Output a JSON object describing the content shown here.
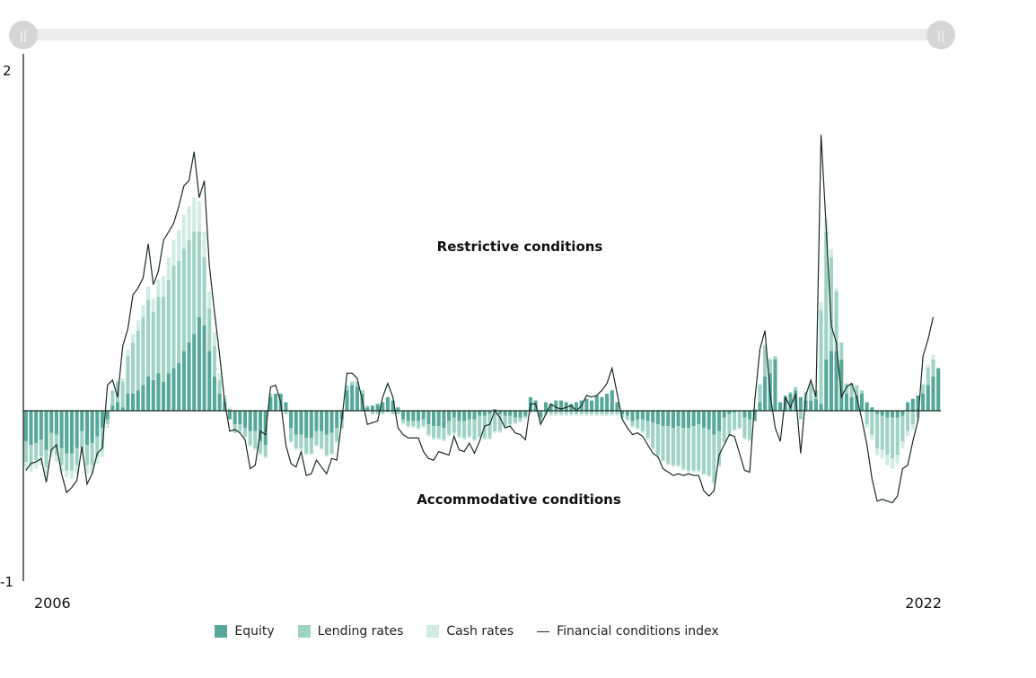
{
  "colors": {
    "equity": "#56a898",
    "lending": "#9fd3c5",
    "cash": "#d0ece4",
    "index": "#1a2a24",
    "slider_track": "#ececec",
    "slider_handle": "#d6d6d6"
  },
  "legend": [
    {
      "key": "equity",
      "label": "Equity"
    },
    {
      "key": "lending",
      "label": "Lending rates"
    },
    {
      "key": "cash",
      "label": "Cash rates"
    },
    {
      "key": "index",
      "label": "Financial conditions index"
    }
  ],
  "chart_data": {
    "type": "bar",
    "stacked": true,
    "title": "",
    "xlabel": "",
    "ylabel": "",
    "ylim": [
      -1,
      2
    ],
    "y_ticks": [
      "2",
      "-1"
    ],
    "x_tick_labels": [
      "2006",
      "2022"
    ],
    "annotations": [
      "Restrictive conditions",
      "Accommodative conditions"
    ],
    "series": [
      {
        "name": "Equity",
        "values": [
          -0.18,
          -0.2,
          -0.19,
          -0.17,
          -0.23,
          -0.13,
          -0.14,
          -0.22,
          -0.25,
          -0.25,
          -0.22,
          -0.12,
          -0.2,
          -0.19,
          -0.15,
          -0.1,
          -0.05,
          0.03,
          0.05,
          0.02,
          0.1,
          0.1,
          0.12,
          0.15,
          0.2,
          0.18,
          0.22,
          0.17,
          0.22,
          0.25,
          0.28,
          0.35,
          0.4,
          0.45,
          0.55,
          0.5,
          0.35,
          0.2,
          0.1,
          0.05,
          -0.05,
          -0.08,
          -0.08,
          -0.1,
          -0.12,
          -0.12,
          -0.18,
          -0.2,
          0.08,
          0.1,
          0.1,
          0.05,
          -0.1,
          -0.14,
          -0.14,
          -0.16,
          -0.16,
          -0.12,
          -0.12,
          -0.14,
          -0.13,
          -0.1,
          -0.05,
          0.12,
          0.15,
          0.14,
          0.1,
          0.02,
          0.03,
          0.04,
          0.05,
          0.08,
          0.06,
          0.02,
          -0.05,
          -0.06,
          -0.06,
          -0.06,
          -0.05,
          -0.08,
          -0.09,
          -0.09,
          -0.1,
          -0.06,
          -0.04,
          -0.06,
          -0.06,
          -0.05,
          -0.05,
          -0.03,
          -0.03,
          -0.02,
          0.01,
          -0.02,
          -0.03,
          -0.03,
          -0.04,
          -0.04,
          -0.03,
          0.08,
          0.06,
          -0.04,
          0.05,
          0.04,
          0.06,
          0.06,
          0.05,
          0.04,
          0.05,
          0.06,
          0.07,
          0.06,
          0.09,
          0.08,
          0.1,
          0.12,
          0.05,
          -0.02,
          -0.03,
          -0.06,
          -0.05,
          -0.05,
          -0.06,
          -0.07,
          -0.08,
          -0.09,
          -0.09,
          -0.1,
          -0.09,
          -0.1,
          -0.1,
          -0.09,
          -0.08,
          -0.1,
          -0.11,
          -0.14,
          -0.12,
          -0.04,
          -0.02,
          -0.01,
          0.0,
          -0.04,
          -0.05,
          -0.06,
          0.05,
          0.2,
          0.22,
          0.3,
          0.05,
          0.08,
          0.1,
          0.12,
          0.08,
          0.06,
          0.06,
          0.07,
          0.04,
          0.3,
          0.35,
          0.35,
          0.3,
          0.1,
          0.08,
          0.09,
          0.1,
          0.05,
          0.02,
          -0.02,
          -0.03,
          -0.04,
          -0.04,
          -0.04,
          -0.03,
          0.05,
          0.07,
          0.09,
          0.1,
          0.15,
          0.2,
          0.25
        ]
      },
      {
        "name": "Lending rates",
        "values": [
          -0.12,
          -0.12,
          -0.1,
          -0.1,
          -0.1,
          -0.11,
          -0.12,
          -0.1,
          -0.1,
          -0.1,
          -0.1,
          -0.1,
          -0.12,
          -0.13,
          -0.12,
          -0.12,
          -0.03,
          0.09,
          0.12,
          0.15,
          0.22,
          0.3,
          0.35,
          0.4,
          0.45,
          0.4,
          0.45,
          0.5,
          0.55,
          0.6,
          0.6,
          0.6,
          0.6,
          0.6,
          0.5,
          0.4,
          0.25,
          0.18,
          0.08,
          0.02,
          0.01,
          -0.05,
          -0.04,
          -0.05,
          -0.08,
          -0.1,
          -0.07,
          -0.07,
          0.02,
          0.0,
          0.0,
          -0.02,
          -0.08,
          -0.08,
          -0.08,
          -0.09,
          -0.09,
          -0.08,
          -0.1,
          -0.12,
          -0.12,
          -0.08,
          -0.05,
          0.03,
          0.02,
          0.03,
          0.02,
          0.01,
          -0.02,
          -0.02,
          -0.02,
          -0.01,
          -0.02,
          -0.02,
          -0.02,
          -0.03,
          -0.03,
          -0.04,
          -0.04,
          -0.06,
          -0.07,
          -0.07,
          -0.07,
          -0.08,
          -0.09,
          -0.09,
          -0.1,
          -0.1,
          -0.12,
          -0.12,
          -0.13,
          -0.14,
          -0.12,
          -0.1,
          -0.06,
          -0.05,
          -0.03,
          -0.02,
          -0.01,
          -0.01,
          0.0,
          -0.02,
          -0.02,
          -0.02,
          -0.02,
          -0.02,
          -0.02,
          -0.02,
          -0.02,
          -0.02,
          -0.02,
          -0.02,
          -0.02,
          -0.02,
          -0.02,
          -0.02,
          -0.02,
          -0.02,
          -0.02,
          -0.03,
          -0.05,
          -0.07,
          -0.1,
          -0.15,
          -0.18,
          -0.2,
          -0.22,
          -0.22,
          -0.23,
          -0.24,
          -0.25,
          -0.26,
          -0.27,
          -0.27,
          -0.27,
          -0.28,
          -0.2,
          -0.14,
          -0.12,
          -0.1,
          -0.1,
          -0.12,
          -0.12,
          0.01,
          0.1,
          0.18,
          0.08,
          0.02,
          0.0,
          0.01,
          0.01,
          0.02,
          -0.05,
          0.05,
          0.1,
          0.05,
          0.55,
          0.75,
          0.55,
          0.35,
          0.1,
          0.06,
          0.08,
          0.06,
          0.02,
          -0.08,
          -0.14,
          -0.2,
          -0.2,
          -0.22,
          -0.24,
          -0.22,
          -0.15,
          -0.12,
          -0.08,
          -0.04,
          0.05,
          0.1,
          0.1
        ]
      },
      {
        "name": "Cash rates",
        "values": [
          -0.04,
          -0.04,
          -0.05,
          -0.05,
          -0.04,
          -0.03,
          -0.04,
          -0.04,
          -0.04,
          -0.05,
          -0.05,
          -0.04,
          -0.05,
          -0.05,
          -0.04,
          -0.05,
          -0.02,
          0.0,
          0.01,
          0.02,
          0.04,
          0.05,
          0.06,
          0.07,
          0.08,
          0.08,
          0.1,
          0.12,
          0.13,
          0.15,
          0.18,
          0.2,
          0.2,
          0.2,
          0.18,
          0.15,
          0.1,
          0.08,
          0.04,
          0.02,
          0.01,
          0.0,
          -0.01,
          -0.01,
          -0.01,
          -0.01,
          -0.01,
          -0.01,
          0.0,
          0.0,
          0.0,
          0.0,
          -0.01,
          -0.01,
          -0.01,
          -0.01,
          -0.01,
          -0.01,
          -0.01,
          -0.01,
          -0.01,
          -0.01,
          -0.01,
          0.0,
          0.0,
          0.0,
          0.0,
          0.0,
          0.0,
          0.0,
          0.0,
          0.0,
          0.0,
          0.0,
          -0.01,
          -0.01,
          -0.01,
          -0.01,
          -0.01,
          -0.01,
          -0.01,
          -0.01,
          -0.01,
          -0.01,
          -0.01,
          -0.01,
          -0.01,
          -0.01,
          -0.01,
          -0.01,
          -0.01,
          -0.01,
          -0.01,
          -0.01,
          -0.01,
          -0.01,
          -0.01,
          -0.01,
          -0.01,
          -0.01,
          -0.01,
          -0.01,
          -0.01,
          -0.01,
          -0.01,
          -0.01,
          -0.01,
          -0.01,
          -0.01,
          -0.01,
          -0.01,
          -0.01,
          -0.01,
          -0.01,
          -0.01,
          -0.01,
          -0.01,
          -0.01,
          -0.01,
          -0.01,
          -0.01,
          -0.01,
          -0.01,
          -0.01,
          -0.01,
          -0.01,
          -0.01,
          -0.01,
          -0.01,
          -0.01,
          -0.01,
          -0.01,
          -0.01,
          -0.01,
          -0.01,
          -0.01,
          -0.01,
          -0.01,
          -0.01,
          -0.01,
          -0.01,
          -0.01,
          -0.01,
          0.0,
          0.01,
          0.01,
          0.01,
          0.0,
          0.0,
          0.0,
          0.0,
          0.0,
          0.0,
          0.0,
          0.0,
          0.0,
          0.05,
          0.08,
          0.05,
          0.02,
          0.0,
          0.0,
          0.0,
          0.0,
          0.0,
          -0.02,
          -0.03,
          -0.04,
          -0.05,
          -0.06,
          -0.06,
          -0.05,
          -0.04,
          -0.03,
          -0.03,
          -0.02,
          0.01,
          0.02,
          0.03
        ]
      },
      {
        "name": "Financial conditions index",
        "type": "line",
        "values": [
          -0.35,
          -0.31,
          -0.3,
          -0.28,
          -0.42,
          -0.23,
          -0.2,
          -0.37,
          -0.48,
          -0.45,
          -0.41,
          -0.21,
          -0.43,
          -0.37,
          -0.25,
          -0.22,
          0.15,
          0.18,
          0.08,
          0.38,
          0.48,
          0.68,
          0.72,
          0.78,
          0.98,
          0.74,
          0.82,
          1.0,
          1.05,
          1.1,
          1.2,
          1.32,
          1.35,
          1.52,
          1.25,
          1.35,
          0.85,
          0.58,
          0.33,
          0.05,
          -0.12,
          -0.11,
          -0.13,
          -0.17,
          -0.34,
          -0.32,
          -0.12,
          -0.14,
          0.14,
          0.15,
          0.05,
          -0.2,
          -0.31,
          -0.33,
          -0.24,
          -0.38,
          -0.37,
          -0.29,
          -0.33,
          -0.37,
          -0.28,
          -0.29,
          -0.05,
          0.22,
          0.22,
          0.19,
          0.06,
          -0.08,
          -0.07,
          -0.06,
          0.08,
          0.16,
          0.08,
          -0.1,
          -0.14,
          -0.16,
          -0.16,
          -0.16,
          -0.24,
          -0.28,
          -0.29,
          -0.24,
          -0.25,
          -0.26,
          -0.15,
          -0.23,
          -0.24,
          -0.19,
          -0.25,
          -0.18,
          -0.09,
          -0.08,
          0.0,
          -0.04,
          -0.1,
          -0.09,
          -0.13,
          -0.14,
          -0.17,
          0.04,
          0.04,
          -0.08,
          -0.02,
          0.04,
          0.02,
          0.01,
          0.02,
          0.03,
          0.0,
          0.03,
          0.09,
          0.08,
          0.09,
          0.12,
          0.16,
          0.25,
          0.1,
          -0.05,
          -0.1,
          -0.14,
          -0.13,
          -0.15,
          -0.2,
          -0.25,
          -0.27,
          -0.34,
          -0.36,
          -0.38,
          -0.37,
          -0.38,
          -0.37,
          -0.38,
          -0.38,
          -0.47,
          -0.5,
          -0.47,
          -0.26,
          -0.2,
          -0.14,
          -0.15,
          -0.25,
          -0.35,
          -0.36,
          0.06,
          0.36,
          0.47,
          0.1,
          -0.1,
          -0.18,
          0.08,
          0.02,
          0.1,
          -0.25,
          0.09,
          0.18,
          0.08,
          1.62,
          1.08,
          0.5,
          0.4,
          0.08,
          0.14,
          0.16,
          0.08,
          -0.05,
          -0.2,
          -0.4,
          -0.53,
          -0.52,
          -0.53,
          -0.54,
          -0.5,
          -0.34,
          -0.32,
          -0.18,
          -0.06,
          0.32,
          0.42,
          0.55
        ]
      }
    ]
  }
}
